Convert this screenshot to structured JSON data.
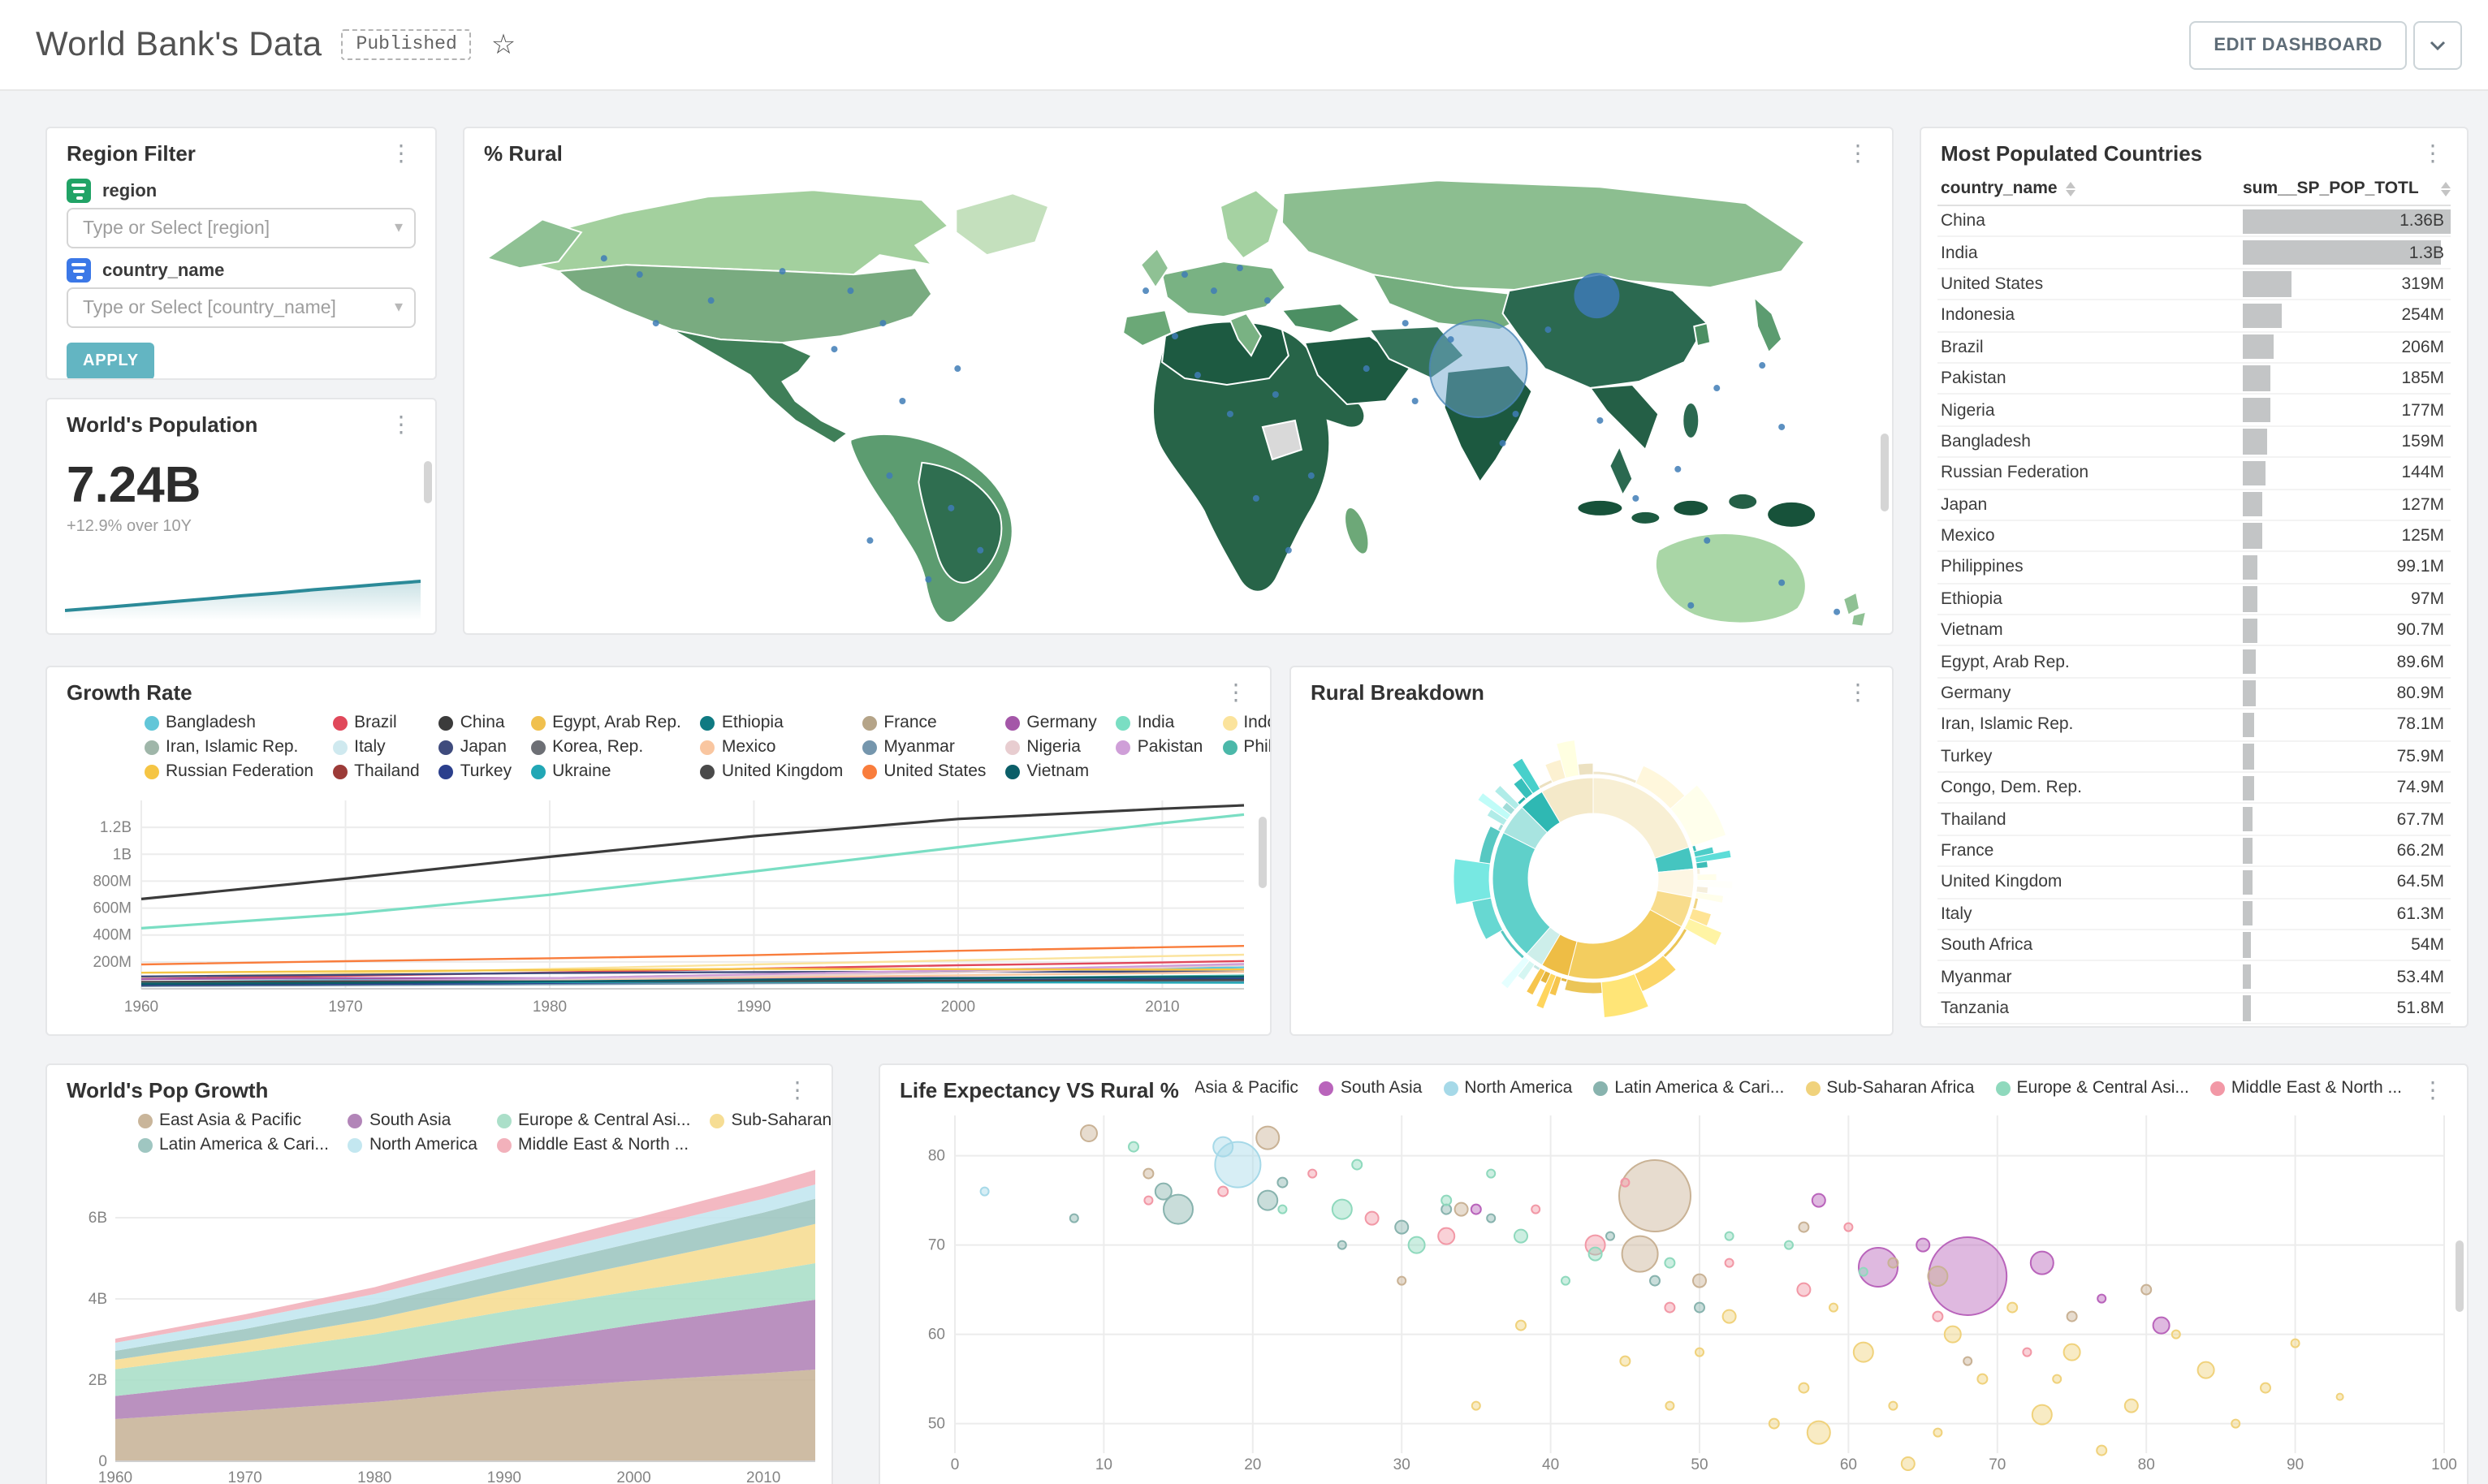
{
  "header": {
    "title": "World Bank's Data",
    "status_badge": "Published",
    "edit_button_label": "EDIT DASHBOARD"
  },
  "region_filter": {
    "title": "Region Filter",
    "fields": [
      {
        "label": "region",
        "placeholder": "Type or Select [region]"
      },
      {
        "label": "country_name",
        "placeholder": "Type or Select [country_name]"
      }
    ],
    "apply_label": "APPLY"
  },
  "worlds_population": {
    "title": "World's Population",
    "value": "7.24B",
    "subtitle": "+12.9% over 10Y",
    "spark_values": [
      6.41,
      6.49,
      6.57,
      6.66,
      6.74,
      6.83,
      6.91,
      7.0,
      7.08,
      7.16,
      7.24
    ]
  },
  "pct_rural": {
    "title": "% Rural"
  },
  "most_populated": {
    "title": "Most Populated Countries",
    "columns": [
      "country_name",
      "sum__SP_POP_TOTL"
    ],
    "max_value_m": 1360,
    "rows": [
      {
        "country": "China",
        "display": "1.36B",
        "value_m": 1360
      },
      {
        "country": "India",
        "display": "1.3B",
        "value_m": 1300
      },
      {
        "country": "United States",
        "display": "319M",
        "value_m": 319
      },
      {
        "country": "Indonesia",
        "display": "254M",
        "value_m": 254
      },
      {
        "country": "Brazil",
        "display": "206M",
        "value_m": 206
      },
      {
        "country": "Pakistan",
        "display": "185M",
        "value_m": 185
      },
      {
        "country": "Nigeria",
        "display": "177M",
        "value_m": 177
      },
      {
        "country": "Bangladesh",
        "display": "159M",
        "value_m": 159
      },
      {
        "country": "Russian Federation",
        "display": "144M",
        "value_m": 144
      },
      {
        "country": "Japan",
        "display": "127M",
        "value_m": 127
      },
      {
        "country": "Mexico",
        "display": "125M",
        "value_m": 125
      },
      {
        "country": "Philippines",
        "display": "99.1M",
        "value_m": 99.1
      },
      {
        "country": "Ethiopia",
        "display": "97M",
        "value_m": 97
      },
      {
        "country": "Vietnam",
        "display": "90.7M",
        "value_m": 90.7
      },
      {
        "country": "Egypt, Arab Rep.",
        "display": "89.6M",
        "value_m": 89.6
      },
      {
        "country": "Germany",
        "display": "80.9M",
        "value_m": 80.9
      },
      {
        "country": "Iran, Islamic Rep.",
        "display": "78.1M",
        "value_m": 78.1
      },
      {
        "country": "Turkey",
        "display": "75.9M",
        "value_m": 75.9
      },
      {
        "country": "Congo, Dem. Rep.",
        "display": "74.9M",
        "value_m": 74.9
      },
      {
        "country": "Thailand",
        "display": "67.7M",
        "value_m": 67.7
      },
      {
        "country": "France",
        "display": "66.2M",
        "value_m": 66.2
      },
      {
        "country": "United Kingdom",
        "display": "64.5M",
        "value_m": 64.5
      },
      {
        "country": "Italy",
        "display": "61.3M",
        "value_m": 61.3
      },
      {
        "country": "South Africa",
        "display": "54M",
        "value_m": 54
      },
      {
        "country": "Myanmar",
        "display": "53.4M",
        "value_m": 53.4
      },
      {
        "country": "Tanzania",
        "display": "51.8M",
        "value_m": 51.8
      }
    ]
  },
  "growth_rate": {
    "title": "Growth Rate",
    "years": [
      1960,
      1970,
      1980,
      1990,
      2000,
      2010,
      2014
    ],
    "x_ticks": [
      1960,
      1970,
      1980,
      1990,
      2000,
      2010
    ],
    "y_max_m": 1400,
    "y_ticks": [
      {
        "v": 200,
        "label": "200M"
      },
      {
        "v": 400,
        "label": "400M"
      },
      {
        "v": 600,
        "label": "600M"
      },
      {
        "v": 800,
        "label": "800M"
      },
      {
        "v": 1000,
        "label": "1B"
      },
      {
        "v": 1200,
        "label": "1.2B"
      }
    ],
    "series": [
      {
        "name": "Bangladesh",
        "color": "#62c6d8",
        "values": [
          48,
          65,
          79,
          106,
          131,
          151,
          159
        ]
      },
      {
        "name": "Brazil",
        "color": "#e0485a",
        "values": [
          72,
          96,
          121,
          150,
          175,
          196,
          206
        ]
      },
      {
        "name": "China",
        "color": "#3b3b3b",
        "values": [
          667,
          818,
          981,
          1135,
          1263,
          1338,
          1364
        ]
      },
      {
        "name": "Egypt, Arab Rep.",
        "color": "#f0c04e",
        "values": [
          27,
          34,
          44,
          56,
          68,
          82,
          90
        ]
      },
      {
        "name": "Ethiopia",
        "color": "#0f7a82",
        "values": [
          22,
          29,
          35,
          48,
          66,
          87,
          97
        ]
      },
      {
        "name": "France",
        "color": "#b5a488",
        "values": [
          47,
          51,
          54,
          57,
          59,
          63,
          66
        ]
      },
      {
        "name": "Germany",
        "color": "#a457a8",
        "values": [
          73,
          78,
          78,
          79,
          82,
          81,
          81
        ]
      },
      {
        "name": "India",
        "color": "#7adec3",
        "values": [
          450,
          555,
          699,
          873,
          1053,
          1231,
          1295
        ]
      },
      {
        "name": "Indonesia",
        "color": "#fbe39c",
        "values": [
          88,
          115,
          147,
          181,
          211,
          242,
          254
        ]
      },
      {
        "name": "Iran, Islamic Rep.",
        "color": "#9fb6a9",
        "values": [
          22,
          29,
          39,
          56,
          66,
          74,
          78
        ]
      },
      {
        "name": "Italy",
        "color": "#cfe9ef",
        "values": [
          50,
          54,
          56,
          57,
          57,
          59,
          61
        ]
      },
      {
        "name": "Japan",
        "color": "#3f4b7d",
        "values": [
          92,
          104,
          117,
          124,
          127,
          128,
          127
        ]
      },
      {
        "name": "Korea, Rep.",
        "color": "#6d6f75",
        "values": [
          25,
          32,
          38,
          43,
          47,
          50,
          50
        ]
      },
      {
        "name": "Mexico",
        "color": "#f9c6a0",
        "values": [
          38,
          51,
          68,
          84,
          100,
          117,
          125
        ]
      },
      {
        "name": "Myanmar",
        "color": "#7596ad",
        "values": [
          21,
          27,
          34,
          41,
          47,
          51,
          53
        ]
      },
      {
        "name": "Nigeria",
        "color": "#e8cdd0",
        "values": [
          45,
          56,
          73,
          95,
          122,
          158,
          177
        ]
      },
      {
        "name": "Pakistan",
        "color": "#cf9fd8",
        "values": [
          45,
          58,
          78,
          108,
          138,
          170,
          185
        ]
      },
      {
        "name": "Philippines",
        "color": "#4bb8a9",
        "values": [
          26,
          36,
          47,
          62,
          78,
          93,
          99
        ]
      },
      {
        "name": "Russian Federation",
        "color": "#f5c544",
        "values": [
          120,
          130,
          139,
          148,
          146,
          143,
          144
        ]
      },
      {
        "name": "Thailand",
        "color": "#9c3b38",
        "values": [
          27,
          36,
          47,
          56,
          63,
          67,
          68
        ]
      },
      {
        "name": "Turkey",
        "color": "#2b3f8c",
        "values": [
          28,
          35,
          44,
          54,
          63,
          72,
          76
        ]
      },
      {
        "name": "Ukraine",
        "color": "#22a7b5",
        "values": [
          42,
          47,
          50,
          52,
          49,
          46,
          45
        ]
      },
      {
        "name": "United Kingdom",
        "color": "#4a4a4a",
        "values": [
          52,
          56,
          56,
          57,
          59,
          63,
          65
        ]
      },
      {
        "name": "United States",
        "color": "#f97d3c",
        "values": [
          181,
          205,
          227,
          250,
          282,
          309,
          319
        ]
      },
      {
        "name": "Vietnam",
        "color": "#0b5e68",
        "values": [
          35,
          43,
          54,
          68,
          80,
          88,
          91
        ]
      }
    ]
  },
  "rural_breakdown": {
    "title": "Rural Breakdown",
    "segments": [
      {
        "color": "#f8efd4",
        "fraction": 0.2
      },
      {
        "color": "#45c5c0",
        "fraction": 0.035
      },
      {
        "color": "#fdf6e3",
        "fraction": 0.045
      },
      {
        "color": "#f8dc8c",
        "fraction": 0.05
      },
      {
        "color": "#f3cd5f",
        "fraction": 0.21
      },
      {
        "color": "#eebd45",
        "fraction": 0.045
      },
      {
        "color": "#cdeeea",
        "fraction": 0.03
      },
      {
        "color": "#5fd0ca",
        "fraction": 0.21
      },
      {
        "color": "#a8e4e0",
        "fraction": 0.05
      },
      {
        "color": "#2fb8b3",
        "fraction": 0.04
      },
      {
        "color": "#f4e9c9",
        "fraction": 0.085
      }
    ]
  },
  "pop_growth": {
    "title": "World's Pop Growth",
    "years": [
      1960,
      1970,
      1980,
      1990,
      2000,
      2010,
      2014
    ],
    "x_ticks": [
      1960,
      1970,
      1980,
      1990,
      2000,
      2010
    ],
    "y_ticks": [
      {
        "v": 0,
        "label": "0"
      },
      {
        "v": 2,
        "label": "2B"
      },
      {
        "v": 4,
        "label": "4B"
      },
      {
        "v": 6,
        "label": "6B"
      }
    ],
    "series": [
      {
        "name": "East Asia & Pacific",
        "color": "#c9b59a",
        "values": [
          1.04,
          1.25,
          1.46,
          1.74,
          1.98,
          2.17,
          2.26
        ]
      },
      {
        "name": "South Asia",
        "color": "#b285b8",
        "values": [
          0.57,
          0.71,
          0.9,
          1.13,
          1.38,
          1.63,
          1.72
        ]
      },
      {
        "name": "Europe & Central Asi...",
        "color": "#abdfc9",
        "values": [
          0.66,
          0.72,
          0.77,
          0.82,
          0.84,
          0.87,
          0.9
        ]
      },
      {
        "name": "Sub-Saharan Africa",
        "color": "#f6dd94",
        "values": [
          0.23,
          0.29,
          0.38,
          0.51,
          0.67,
          0.87,
          0.97
        ]
      },
      {
        "name": "Latin America & Cari...",
        "color": "#9fc6c1",
        "values": [
          0.22,
          0.29,
          0.36,
          0.44,
          0.52,
          0.59,
          0.62
        ]
      },
      {
        "name": "North America",
        "color": "#c3e7f0",
        "values": [
          0.2,
          0.23,
          0.25,
          0.28,
          0.31,
          0.34,
          0.35
        ]
      },
      {
        "name": "Middle East & North ...",
        "color": "#f2b1bb",
        "values": [
          0.1,
          0.13,
          0.17,
          0.23,
          0.28,
          0.34,
          0.36
        ]
      }
    ]
  },
  "life_expectancy": {
    "title": "Life Expectancy VS Rural %",
    "y_ticks": [
      50,
      60,
      70,
      80
    ],
    "x_ticks": [
      0,
      10,
      20,
      30,
      40,
      50,
      60,
      70,
      80,
      90,
      100
    ],
    "regions": [
      {
        "name": "East Asia & Pacific",
        "color": "#c9b295"
      },
      {
        "name": "South Asia",
        "color": "#b964bb"
      },
      {
        "name": "North America",
        "color": "#a6d9e8"
      },
      {
        "name": "Latin America & Cari...",
        "color": "#88b3ae"
      },
      {
        "name": "Sub-Saharan Africa",
        "color": "#f0d27c"
      },
      {
        "name": "Europe & Central Asi...",
        "color": "#8fd9bd"
      },
      {
        "name": "Middle East & North ...",
        "color": "#f298a6"
      }
    ],
    "points": [
      [
        47,
        75.5,
        22,
        0
      ],
      [
        46,
        69,
        11,
        0
      ],
      [
        66,
        66.5,
        6,
        0
      ],
      [
        21,
        82,
        7,
        0
      ],
      [
        9,
        82.5,
        5,
        0
      ],
      [
        34,
        74,
        4,
        0
      ],
      [
        50,
        66,
        4,
        0
      ],
      [
        63,
        68,
        3,
        0
      ],
      [
        75,
        62,
        3,
        0
      ],
      [
        57,
        72,
        3,
        0
      ],
      [
        80,
        65,
        3,
        0
      ],
      [
        13,
        78,
        3,
        0
      ],
      [
        30,
        66,
        2.5,
        0
      ],
      [
        68,
        57,
        2.5,
        0
      ],
      [
        68,
        66.5,
        24,
        1
      ],
      [
        62,
        67.5,
        12,
        1
      ],
      [
        73,
        68,
        7,
        1
      ],
      [
        81,
        61,
        5,
        1
      ],
      [
        65,
        70,
        4,
        1
      ],
      [
        58,
        75,
        4,
        1
      ],
      [
        35,
        74,
        3,
        1
      ],
      [
        77,
        64,
        2.5,
        1
      ],
      [
        19,
        79,
        14,
        2
      ],
      [
        18,
        81,
        6,
        2
      ],
      [
        2,
        76,
        2.5,
        2
      ],
      [
        15,
        74,
        9,
        3
      ],
      [
        21,
        75,
        6,
        3
      ],
      [
        14,
        76,
        5,
        3
      ],
      [
        30,
        72,
        4,
        3
      ],
      [
        47,
        66,
        3,
        3
      ],
      [
        33,
        74,
        3,
        3
      ],
      [
        50,
        63,
        3,
        3
      ],
      [
        22,
        77,
        3,
        3
      ],
      [
        36,
        73,
        2.5,
        3
      ],
      [
        8,
        73,
        2.5,
        3
      ],
      [
        44,
        71,
        2.5,
        3
      ],
      [
        26,
        70,
        2.5,
        3
      ],
      [
        84,
        56,
        5,
        4
      ],
      [
        73,
        51,
        6,
        4
      ],
      [
        58,
        49,
        7,
        4
      ],
      [
        61,
        58,
        6,
        4
      ],
      [
        67,
        60,
        5,
        4
      ],
      [
        75,
        58,
        5,
        4
      ],
      [
        52,
        62,
        4,
        4
      ],
      [
        79,
        52,
        4,
        4
      ],
      [
        88,
        54,
        3,
        4
      ],
      [
        64,
        45.5,
        4,
        4
      ],
      [
        57,
        54,
        3,
        4
      ],
      [
        71,
        63,
        3,
        4
      ],
      [
        45,
        57,
        3,
        4
      ],
      [
        38,
        61,
        3,
        4
      ],
      [
        82,
        60,
        2.5,
        4
      ],
      [
        90,
        59,
        2.5,
        4
      ],
      [
        55,
        50,
        3,
        4
      ],
      [
        69,
        55,
        3,
        4
      ],
      [
        77,
        47,
        3,
        4
      ],
      [
        63,
        52,
        2.5,
        4
      ],
      [
        86,
        50,
        2.5,
        4
      ],
      [
        48,
        52,
        2.5,
        4
      ],
      [
        93,
        53,
        2,
        4
      ],
      [
        59,
        63,
        2.5,
        4
      ],
      [
        35,
        52,
        2.5,
        4
      ],
      [
        50,
        58,
        2.5,
        4
      ],
      [
        66,
        49,
        2.5,
        4
      ],
      [
        74,
        55,
        2.5,
        4
      ],
      [
        26,
        74,
        6,
        5
      ],
      [
        31,
        70,
        5,
        5
      ],
      [
        43,
        69,
        4,
        5
      ],
      [
        38,
        71,
        4,
        5
      ],
      [
        27,
        79,
        3,
        5
      ],
      [
        33,
        75,
        3,
        5
      ],
      [
        48,
        68,
        3,
        5
      ],
      [
        56,
        70,
        2.5,
        5
      ],
      [
        12,
        81,
        3,
        5
      ],
      [
        22,
        74,
        2.5,
        5
      ],
      [
        61,
        67,
        2.5,
        5
      ],
      [
        41,
        66,
        2.5,
        5
      ],
      [
        36,
        78,
        2.5,
        5
      ],
      [
        52,
        71,
        2.5,
        5
      ],
      [
        43,
        70,
        6,
        6
      ],
      [
        33,
        71,
        5,
        6
      ],
      [
        57,
        65,
        4,
        6
      ],
      [
        28,
        73,
        4,
        6
      ],
      [
        48,
        63,
        3,
        6
      ],
      [
        18,
        76,
        3,
        6
      ],
      [
        66,
        62,
        3,
        6
      ],
      [
        72,
        58,
        2.5,
        6
      ],
      [
        39,
        74,
        2.5,
        6
      ],
      [
        52,
        68,
        2.5,
        6
      ],
      [
        24,
        78,
        2.5,
        6
      ],
      [
        13,
        75,
        2.5,
        6
      ],
      [
        60,
        72,
        2.5,
        6
      ],
      [
        45,
        77,
        2.5,
        6
      ]
    ]
  }
}
